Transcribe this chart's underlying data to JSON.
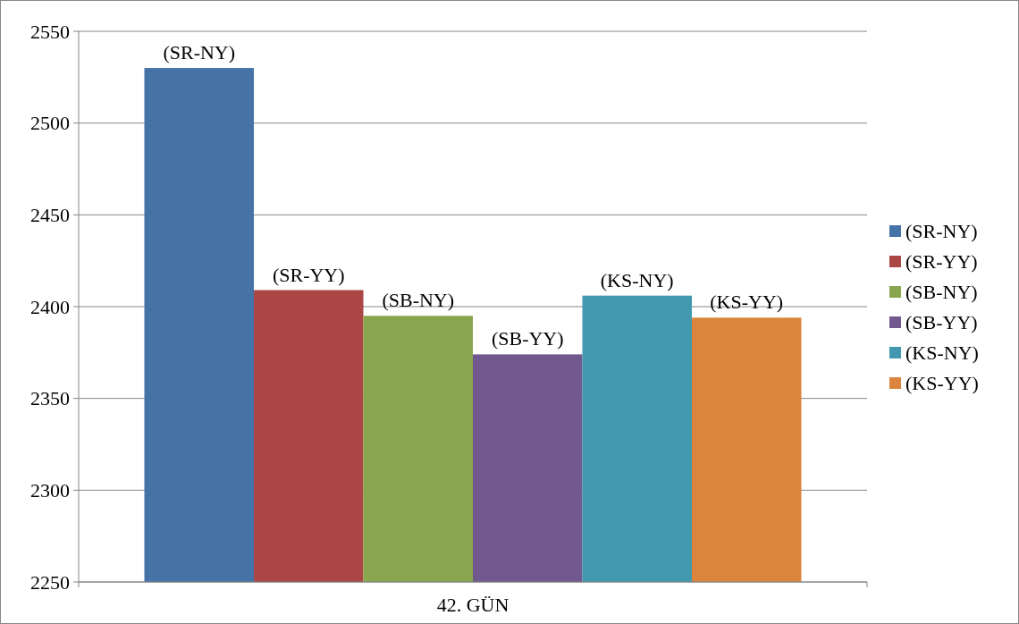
{
  "chart_data": {
    "type": "bar",
    "categories": [
      "42. GÜN"
    ],
    "series": [
      {
        "name": "(SR-NY)",
        "color": "#4572a7",
        "values": [
          2530
        ]
      },
      {
        "name": "(SR-YY)",
        "color": "#aa4643",
        "values": [
          2409
        ]
      },
      {
        "name": "(SB-NY)",
        "color": "#89a54e",
        "values": [
          2395
        ]
      },
      {
        "name": "(SB-YY)",
        "color": "#71588f",
        "values": [
          2374
        ]
      },
      {
        "name": "(KS-NY)",
        "color": "#4198af",
        "values": [
          2406
        ]
      },
      {
        "name": "(KS-YY)",
        "color": "#db843d",
        "values": [
          2394
        ]
      }
    ],
    "ylim": [
      2250,
      2550
    ],
    "yticks": [
      2250,
      2300,
      2350,
      2400,
      2450,
      2500,
      2550
    ],
    "grid": "y",
    "legend": "right"
  }
}
